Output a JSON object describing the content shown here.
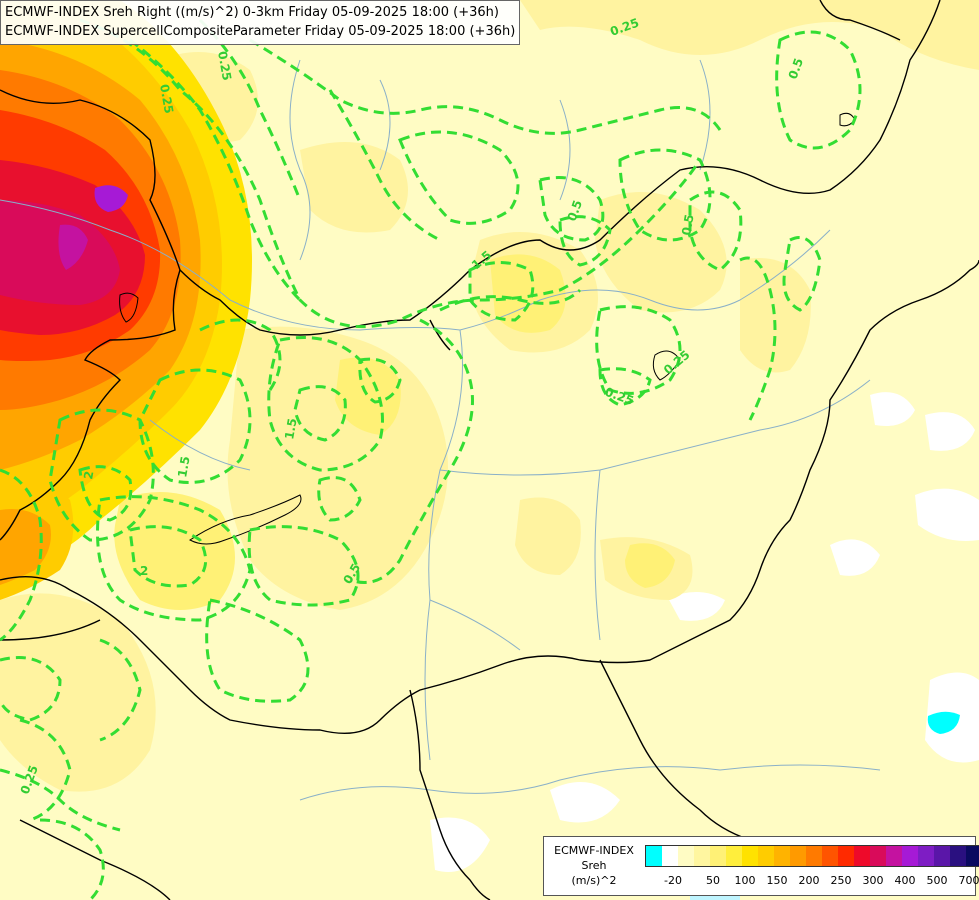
{
  "titles": {
    "line1": "ECMWF-INDEX Sreh Right ((m/s)^2) 0-3km Friday 05-09-2025 18:00 (+36h)",
    "line2": "ECMWF-INDEX SupercellCompositeParameter Friday 05-09-2025 18:00 (+36h)"
  },
  "legend": {
    "source": "ECMWF-INDEX",
    "variable": "Sreh",
    "unit": "(m/s)^2",
    "colors": [
      "#00ffff",
      "#ffffff",
      "#fffcc4",
      "#fff6a0",
      "#fff176",
      "#ffee3c",
      "#ffe200",
      "#ffcc00",
      "#ffb300",
      "#ff9a00",
      "#ff7a00",
      "#ff5400",
      "#ff2a00",
      "#ee0a2a",
      "#d90b5a",
      "#c412a0",
      "#a61ad6",
      "#7e1dc4",
      "#5a16a8",
      "#2a1080",
      "#0a0a60"
    ],
    "tick_labels": [
      "-20",
      "50",
      "100",
      "150",
      "200",
      "250",
      "300",
      "400",
      "500",
      "700"
    ]
  },
  "contour_labels": [
    "0.25",
    "0.25",
    "0.25",
    "0.5",
    "0.5",
    "0.25",
    "1.5",
    "1.5",
    "2",
    "0.5",
    "0.25",
    "0.5",
    "2",
    "1.5",
    "0.25"
  ]
}
